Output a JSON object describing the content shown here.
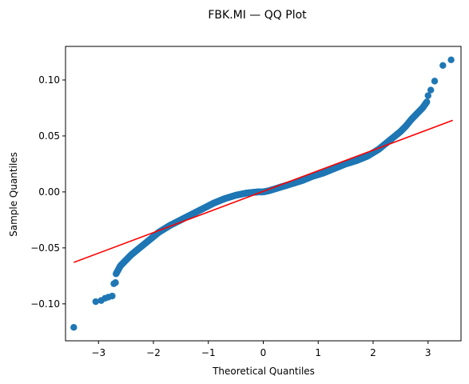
{
  "chart_data": {
    "type": "scatter",
    "title": "FBK.MI — QQ Plot",
    "xlabel": "Theoretical Quantiles",
    "ylabel": "Sample Quantiles",
    "xlim": [
      -3.6,
      3.6
    ],
    "ylim": [
      -0.133,
      0.13
    ],
    "x_ticks": [
      -3,
      -2,
      -1,
      0,
      1,
      2,
      3
    ],
    "x_tick_labels": [
      "−3",
      "−2",
      "−1",
      "0",
      "1",
      "2",
      "3"
    ],
    "y_ticks": [
      -0.1,
      -0.05,
      0.0,
      0.05,
      0.1
    ],
    "y_tick_labels": [
      "−0.10",
      "−0.05",
      "0.00",
      "0.05",
      "0.10"
    ],
    "grid": false,
    "colors": {
      "points": "#1f77b4",
      "reference_line": "#ff0000"
    },
    "reference_line": {
      "x": [
        -3.45,
        3.45
      ],
      "y": [
        -0.063,
        0.064
      ]
    },
    "sample_curve": {
      "x": [
        -3.45,
        -3.05,
        -2.9,
        -2.8,
        -2.7,
        -2.6,
        -2.5,
        -2.4,
        -2.3,
        -2.2,
        -2.1,
        -2.0,
        -1.9,
        -1.8,
        -1.7,
        -1.5,
        -1.3,
        -1.1,
        -0.9,
        -0.7,
        -0.5,
        -0.3,
        -0.1,
        0.0,
        0.1,
        0.3,
        0.5,
        0.7,
        0.9,
        1.1,
        1.3,
        1.5,
        1.7,
        1.8,
        1.9,
        2.0,
        2.1,
        2.2,
        2.3,
        2.4,
        2.5,
        2.6,
        2.7,
        2.8,
        2.9,
        3.0,
        3.1,
        3.2,
        3.3,
        3.45
      ],
      "y": [
        -0.121,
        -0.098,
        -0.094,
        -0.085,
        -0.075,
        -0.066,
        -0.061,
        -0.056,
        -0.052,
        -0.048,
        -0.044,
        -0.04,
        -0.036,
        -0.033,
        -0.03,
        -0.025,
        -0.02,
        -0.015,
        -0.01,
        -0.006,
        -0.003,
        -0.001,
        0.0,
        0.0,
        0.001,
        0.004,
        0.007,
        0.01,
        0.014,
        0.017,
        0.021,
        0.025,
        0.028,
        0.03,
        0.032,
        0.035,
        0.038,
        0.042,
        0.046,
        0.05,
        0.054,
        0.059,
        0.065,
        0.07,
        0.075,
        0.082,
        0.091,
        0.099,
        0.113,
        0.118
      ]
    },
    "outlier_points": [
      {
        "x": -3.45,
        "y": -0.121
      },
      {
        "x": -3.05,
        "y": -0.098
      },
      {
        "x": -2.95,
        "y": -0.097
      },
      {
        "x": -2.88,
        "y": -0.095
      },
      {
        "x": -2.82,
        "y": -0.094
      },
      {
        "x": -2.75,
        "y": -0.093
      },
      {
        "x": -2.72,
        "y": -0.082
      },
      {
        "x": -2.69,
        "y": -0.081
      },
      {
        "x": 3.0,
        "y": 0.086
      },
      {
        "x": 3.05,
        "y": 0.091
      },
      {
        "x": 3.12,
        "y": 0.099
      },
      {
        "x": 3.27,
        "y": 0.113
      },
      {
        "x": 3.42,
        "y": 0.118
      }
    ]
  }
}
